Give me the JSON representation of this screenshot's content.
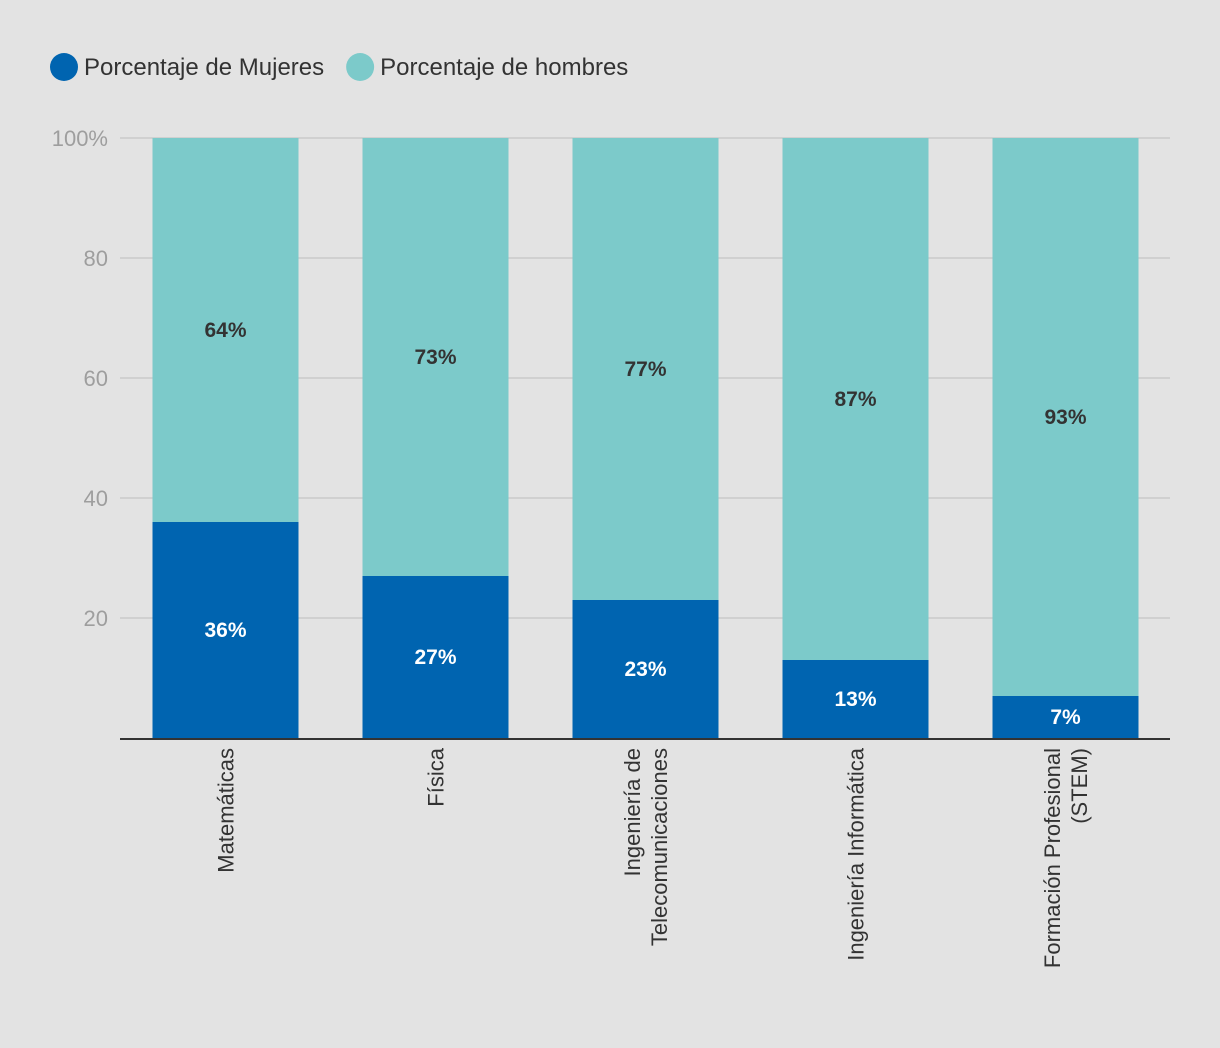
{
  "chart_data": {
    "type": "bar",
    "stacked": true,
    "categories": [
      [
        "Matemáticas"
      ],
      [
        "Física"
      ],
      [
        "Ingeniería de",
        "Telecomunicaciones"
      ],
      [
        "Ingeniería Informática"
      ],
      [
        "Formación Profesional",
        "(STEM)"
      ]
    ],
    "series": [
      {
        "name": "Porcentaje de Mujeres",
        "color": "#0064b0",
        "label_color": "#ffffff",
        "values": [
          36,
          27,
          23,
          13,
          7
        ],
        "labels": [
          "36%",
          "27%",
          "23%",
          "13%",
          "7%"
        ]
      },
      {
        "name": "Porcentaje de hombres",
        "color": "#7ccaca",
        "label_color": "#333333",
        "values": [
          64,
          73,
          77,
          87,
          93
        ],
        "labels": [
          "64%",
          "73%",
          "77%",
          "87%",
          "93%"
        ]
      }
    ],
    "y_ticks": [
      20,
      40,
      60,
      80,
      100
    ],
    "y_tick_labels": [
      "20",
      "40",
      "60",
      "80",
      "100%"
    ],
    "ylim": [
      0,
      100
    ],
    "grid": true,
    "legend_position": "top-left",
    "title": "",
    "xlabel": "",
    "ylabel": ""
  }
}
